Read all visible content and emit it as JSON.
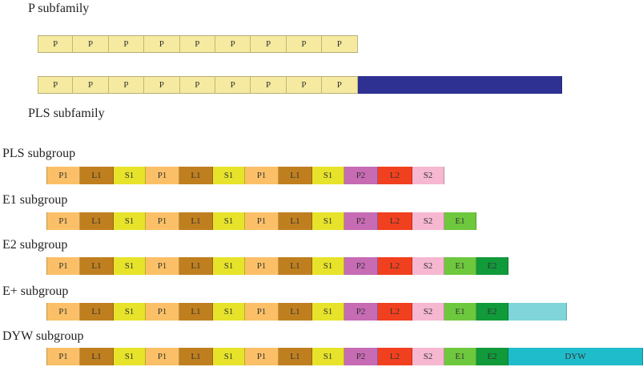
{
  "p_subfamily": {
    "heading": "P subfamily",
    "rows": [
      {
        "segments": [
          {
            "label": "P",
            "type": "P"
          },
          {
            "label": "P",
            "type": "P"
          },
          {
            "label": "P",
            "type": "P"
          },
          {
            "label": "P",
            "type": "P"
          },
          {
            "label": "P",
            "type": "P"
          },
          {
            "label": "P",
            "type": "P"
          },
          {
            "label": "P",
            "type": "P"
          },
          {
            "label": "P",
            "type": "P"
          },
          {
            "label": "P",
            "type": "P"
          }
        ]
      },
      {
        "segments": [
          {
            "label": "P",
            "type": "P"
          },
          {
            "label": "P",
            "type": "P"
          },
          {
            "label": "P",
            "type": "P"
          },
          {
            "label": "P",
            "type": "P"
          },
          {
            "label": "P",
            "type": "P"
          },
          {
            "label": "P",
            "type": "P"
          },
          {
            "label": "P",
            "type": "P"
          },
          {
            "label": "P",
            "type": "P"
          },
          {
            "label": "P",
            "type": "P"
          },
          {
            "label": "",
            "type": "C"
          }
        ]
      }
    ]
  },
  "pls_subfamily": {
    "heading": "PLS subfamily",
    "subgroups": [
      {
        "heading": "PLS subgroup",
        "segments": [
          {
            "label": "P1",
            "type": "P1"
          },
          {
            "label": "L1",
            "type": "L1"
          },
          {
            "label": "S1",
            "type": "S1"
          },
          {
            "label": "P1",
            "type": "P1"
          },
          {
            "label": "L1",
            "type": "L1"
          },
          {
            "label": "S1",
            "type": "S1"
          },
          {
            "label": "P1",
            "type": "P1"
          },
          {
            "label": "L1",
            "type": "L1"
          },
          {
            "label": "S1",
            "type": "S1"
          },
          {
            "label": "P2",
            "type": "P2"
          },
          {
            "label": "L2",
            "type": "L2"
          },
          {
            "label": "S2",
            "type": "S2"
          }
        ]
      },
      {
        "heading": "E1 subgroup",
        "segments": [
          {
            "label": "P1",
            "type": "P1"
          },
          {
            "label": "L1",
            "type": "L1"
          },
          {
            "label": "S1",
            "type": "S1"
          },
          {
            "label": "P1",
            "type": "P1"
          },
          {
            "label": "L1",
            "type": "L1"
          },
          {
            "label": "S1",
            "type": "S1"
          },
          {
            "label": "P1",
            "type": "P1"
          },
          {
            "label": "L1",
            "type": "L1"
          },
          {
            "label": "S1",
            "type": "S1"
          },
          {
            "label": "P2",
            "type": "P2"
          },
          {
            "label": "L2",
            "type": "L2"
          },
          {
            "label": "S2",
            "type": "S2"
          },
          {
            "label": "E1",
            "type": "E1"
          }
        ]
      },
      {
        "heading": "E2 subgroup",
        "segments": [
          {
            "label": "P1",
            "type": "P1"
          },
          {
            "label": "L1",
            "type": "L1"
          },
          {
            "label": "S1",
            "type": "S1"
          },
          {
            "label": "P1",
            "type": "P1"
          },
          {
            "label": "L1",
            "type": "L1"
          },
          {
            "label": "S1",
            "type": "S1"
          },
          {
            "label": "P1",
            "type": "P1"
          },
          {
            "label": "L1",
            "type": "L1"
          },
          {
            "label": "S1",
            "type": "S1"
          },
          {
            "label": "P2",
            "type": "P2"
          },
          {
            "label": "L2",
            "type": "L2"
          },
          {
            "label": "S2",
            "type": "S2"
          },
          {
            "label": "E1",
            "type": "E1"
          },
          {
            "label": "E2",
            "type": "E2"
          }
        ]
      },
      {
        "heading": "E+ subgroup",
        "segments": [
          {
            "label": "P1",
            "type": "P1"
          },
          {
            "label": "L1",
            "type": "L1"
          },
          {
            "label": "S1",
            "type": "S1"
          },
          {
            "label": "P1",
            "type": "P1"
          },
          {
            "label": "L1",
            "type": "L1"
          },
          {
            "label": "S1",
            "type": "S1"
          },
          {
            "label": "P1",
            "type": "P1"
          },
          {
            "label": "L1",
            "type": "L1"
          },
          {
            "label": "S1",
            "type": "S1"
          },
          {
            "label": "P2",
            "type": "P2"
          },
          {
            "label": "L2",
            "type": "L2"
          },
          {
            "label": "S2",
            "type": "S2"
          },
          {
            "label": "E1",
            "type": "E1"
          },
          {
            "label": "E2",
            "type": "E2"
          },
          {
            "label": "",
            "type": "Eplus"
          }
        ]
      },
      {
        "heading": "DYW subgroup",
        "segments": [
          {
            "label": "P1",
            "type": "P1"
          },
          {
            "label": "L1",
            "type": "L1"
          },
          {
            "label": "S1",
            "type": "S1"
          },
          {
            "label": "P1",
            "type": "P1"
          },
          {
            "label": "L1",
            "type": "L1"
          },
          {
            "label": "S1",
            "type": "S1"
          },
          {
            "label": "P1",
            "type": "P1"
          },
          {
            "label": "L1",
            "type": "L1"
          },
          {
            "label": "S1",
            "type": "S1"
          },
          {
            "label": "P2",
            "type": "P2"
          },
          {
            "label": "L2",
            "type": "L2"
          },
          {
            "label": "S2",
            "type": "S2"
          },
          {
            "label": "E1",
            "type": "E1"
          },
          {
            "label": "E2",
            "type": "E2"
          },
          {
            "label": "DYW",
            "type": "DYW"
          }
        ]
      }
    ]
  },
  "colors": {
    "P": "#f5ea9f",
    "C": "#2e3192",
    "P1": "#fbc067",
    "L1": "#c07f1f",
    "S1": "#e6e32a",
    "P2": "#c66bb4",
    "L2": "#f1401f",
    "S2": "#f6b7d0",
    "E1": "#6ec83d",
    "E2": "#119a3a",
    "Eplus": "#7fd5d9",
    "DYW": "#1fbccb"
  }
}
